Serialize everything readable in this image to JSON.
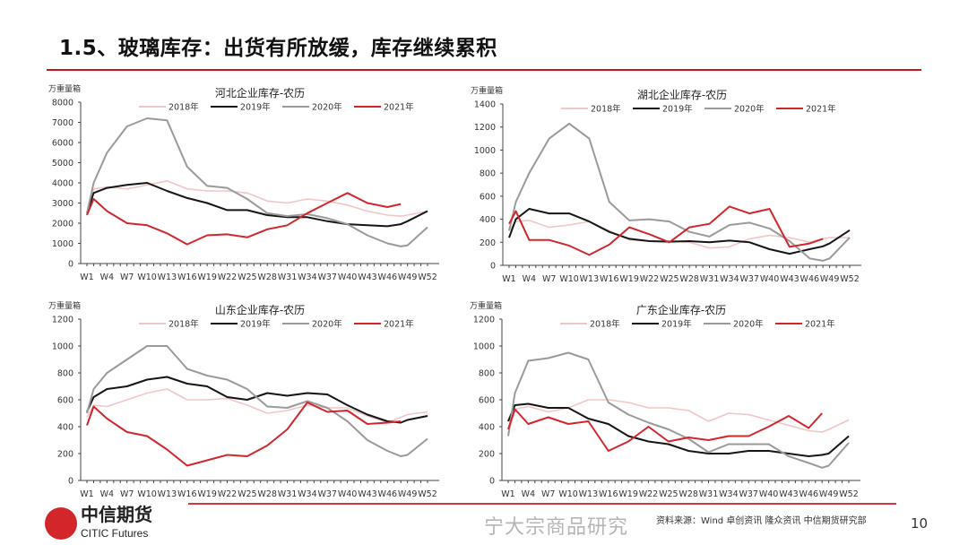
{
  "slide": {
    "title": "1.5、玻璃库存：出货有所放缓，库存继续累积",
    "logo_cn": "中信期货",
    "logo_en": "CITIC Futures",
    "source": "资料来源：Wind 卓创资讯 隆众资讯 中信期货研究部",
    "page_number": "10",
    "watermark": "宁大宗商品研究",
    "accent_color": "#c9151e"
  },
  "series_colors": {
    "2018年": "#f0c6c6",
    "2019年": "#151515",
    "2020年": "#9a9a9a",
    "2021年": "#d0262c"
  },
  "chart_data": [
    {
      "type": "line",
      "title": "河北企业库存-农历",
      "ylabel": "万重量箱",
      "ylim": [
        0,
        8000
      ],
      "yticks": [
        "0",
        "1000",
        "2000",
        "3000",
        "4000",
        "5000",
        "6000",
        "7000",
        "8000"
      ],
      "xticks": [
        "W1",
        "W4",
        "W7",
        "W10",
        "W13",
        "W16",
        "W19",
        "W22",
        "W25",
        "W28",
        "W31",
        "W34",
        "W37",
        "W40",
        "W43",
        "W46",
        "W49",
        "W52"
      ],
      "x": [
        1,
        2,
        4,
        7,
        10,
        13,
        16,
        19,
        22,
        25,
        28,
        31,
        34,
        37,
        40,
        43,
        46,
        48,
        49,
        52
      ],
      "legend": "top",
      "grid": false,
      "series": [
        {
          "name": "2018年",
          "values": [
            2500,
            3700,
            3800,
            3700,
            3900,
            4100,
            3700,
            3600,
            3600,
            3500,
            3100,
            3000,
            3200,
            3100,
            2900,
            2600,
            2400,
            2350,
            2400,
            2600
          ]
        },
        {
          "name": "2019年",
          "values": [
            2500,
            3500,
            3750,
            3900,
            4000,
            3600,
            3250,
            3000,
            2650,
            2650,
            2400,
            2300,
            2300,
            2100,
            1950,
            1900,
            1850,
            1950,
            2100,
            2600
          ]
        },
        {
          "name": "2020年",
          "values": [
            2500,
            4000,
            5500,
            6800,
            7200,
            7100,
            4800,
            3850,
            3750,
            3200,
            2500,
            2350,
            2450,
            2250,
            1950,
            1400,
            1000,
            850,
            900,
            1800
          ]
        },
        {
          "name": "2021年",
          "values": [
            2400,
            3200,
            2600,
            2000,
            1900,
            1500,
            950,
            1400,
            1450,
            1300,
            1700,
            1900,
            2500,
            3000,
            3500,
            3000,
            2800,
            2950,
            null,
            null
          ]
        }
      ]
    },
    {
      "type": "line",
      "title": "湖北企业库存-农历",
      "ylabel": "万重量箱",
      "ylim": [
        0,
        1400
      ],
      "yticks": [
        "0",
        "200",
        "400",
        "600",
        "800",
        "1000",
        "1200",
        "1400"
      ],
      "xticks": [
        "W1",
        "W4",
        "W7",
        "W10",
        "W13",
        "W16",
        "W19",
        "W22",
        "W25",
        "W28",
        "W31",
        "W34",
        "W37",
        "W40",
        "W43",
        "W46",
        "W49",
        "W52"
      ],
      "x": [
        1,
        2,
        4,
        7,
        10,
        13,
        16,
        19,
        22,
        25,
        28,
        31,
        34,
        37,
        40,
        43,
        46,
        48,
        49,
        52
      ],
      "legend": "top",
      "grid": false,
      "series": [
        {
          "name": "2018年",
          "values": [
            300,
            380,
            390,
            330,
            350,
            380,
            300,
            220,
            210,
            210,
            200,
            150,
            160,
            230,
            260,
            240,
            200,
            230,
            240,
            240
          ]
        },
        {
          "name": "2019年",
          "values": [
            240,
            400,
            490,
            450,
            450,
            380,
            290,
            230,
            210,
            205,
            210,
            200,
            215,
            200,
            140,
            100,
            140,
            165,
            190,
            305
          ]
        },
        {
          "name": "2020年",
          "values": [
            300,
            550,
            800,
            1100,
            1230,
            1100,
            550,
            390,
            400,
            380,
            290,
            250,
            350,
            370,
            320,
            210,
            60,
            40,
            60,
            240
          ]
        },
        {
          "name": "2021年",
          "values": [
            360,
            470,
            220,
            220,
            170,
            90,
            180,
            330,
            270,
            200,
            330,
            360,
            510,
            450,
            490,
            160,
            190,
            230,
            null,
            null
          ]
        }
      ]
    },
    {
      "type": "line",
      "title": "山东企业库存-农历",
      "ylabel": "万重量箱",
      "ylim": [
        0,
        1200
      ],
      "yticks": [
        "0",
        "200",
        "400",
        "600",
        "800",
        "1000",
        "1200"
      ],
      "xticks": [
        "W1",
        "W4",
        "W7",
        "W10",
        "W13",
        "W16",
        "W19",
        "W22",
        "W25",
        "W28",
        "W31",
        "W34",
        "W37",
        "W40",
        "W43",
        "W46",
        "W49",
        "W52"
      ],
      "x": [
        1,
        2,
        4,
        7,
        10,
        13,
        16,
        19,
        22,
        25,
        28,
        31,
        34,
        37,
        40,
        43,
        46,
        48,
        49,
        52
      ],
      "legend": "top",
      "grid": false,
      "series": [
        {
          "name": "2018年",
          "values": [
            470,
            560,
            550,
            600,
            650,
            680,
            600,
            600,
            610,
            560,
            500,
            520,
            560,
            540,
            540,
            480,
            430,
            470,
            490,
            510
          ]
        },
        {
          "name": "2019年",
          "values": [
            510,
            620,
            680,
            700,
            750,
            770,
            720,
            700,
            620,
            600,
            650,
            630,
            650,
            640,
            560,
            490,
            440,
            430,
            450,
            480
          ]
        },
        {
          "name": "2020年",
          "values": [
            500,
            680,
            800,
            900,
            1000,
            1000,
            830,
            780,
            750,
            680,
            550,
            540,
            590,
            540,
            440,
            300,
            220,
            180,
            190,
            310
          ]
        },
        {
          "name": "2021年",
          "values": [
            410,
            550,
            460,
            360,
            330,
            230,
            110,
            150,
            190,
            180,
            260,
            380,
            580,
            510,
            520,
            420,
            430,
            440,
            null,
            null
          ]
        }
      ]
    },
    {
      "type": "line",
      "title": "广东企业库存-农历",
      "ylabel": "万重量箱",
      "ylim": [
        0,
        1200
      ],
      "yticks": [
        "0",
        "200",
        "400",
        "600",
        "800",
        "1000",
        "1200"
      ],
      "xticks": [
        "W1",
        "W4",
        "W7",
        "W10",
        "W13",
        "W16",
        "W19",
        "W22",
        "W25",
        "W28",
        "W31",
        "W34",
        "W37",
        "W40",
        "W43",
        "W46",
        "W49",
        "W52"
      ],
      "x": [
        1,
        2,
        4,
        7,
        10,
        13,
        16,
        19,
        22,
        25,
        28,
        31,
        34,
        37,
        40,
        43,
        46,
        48,
        49,
        52
      ],
      "legend": "top",
      "grid": false,
      "series": [
        {
          "name": "2018年",
          "values": [
            350,
            530,
            550,
            510,
            540,
            600,
            600,
            580,
            540,
            540,
            520,
            440,
            500,
            490,
            450,
            410,
            370,
            360,
            380,
            450
          ]
        },
        {
          "name": "2019年",
          "values": [
            440,
            560,
            570,
            540,
            540,
            460,
            420,
            330,
            290,
            270,
            220,
            200,
            200,
            220,
            220,
            200,
            180,
            190,
            200,
            330
          ]
        },
        {
          "name": "2020年",
          "values": [
            330,
            650,
            890,
            910,
            950,
            900,
            580,
            490,
            430,
            380,
            310,
            210,
            270,
            270,
            270,
            180,
            130,
            95,
            110,
            280
          ]
        },
        {
          "name": "2021年",
          "values": [
            380,
            530,
            420,
            470,
            420,
            440,
            220,
            290,
            400,
            290,
            320,
            300,
            330,
            330,
            400,
            480,
            390,
            500,
            null,
            null
          ]
        }
      ]
    }
  ]
}
